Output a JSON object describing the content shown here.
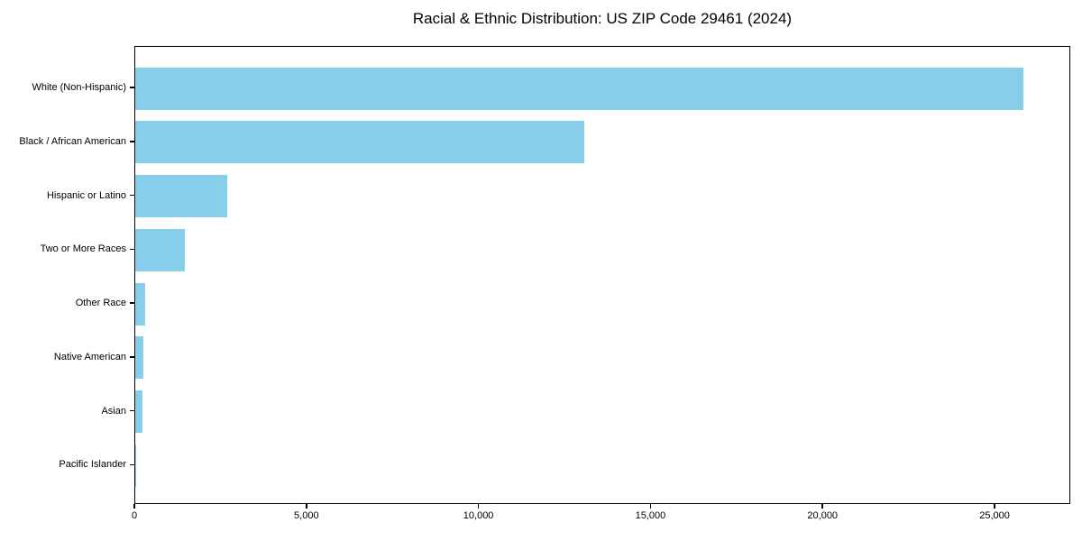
{
  "chart_data": {
    "type": "bar",
    "orientation": "horizontal",
    "title": "Racial & Ethnic Distribution: US ZIP Code 29461 (2024)",
    "xlabel": "",
    "ylabel": "",
    "categories": [
      "White (Non-Hispanic)",
      "Black / African American",
      "Hispanic or Latino",
      "Two or More Races",
      "Other Race",
      "Native American",
      "Asian",
      "Pacific Islander"
    ],
    "values": [
      25800,
      13050,
      2670,
      1440,
      290,
      245,
      220,
      20
    ],
    "xlim": [
      0,
      27200
    ],
    "x_ticks": [
      0,
      5000,
      10000,
      15000,
      20000,
      25000
    ],
    "x_tick_labels": [
      "0",
      "5,000",
      "10,000",
      "15,000",
      "20,000",
      "25,000"
    ],
    "grid": false,
    "legend": null,
    "bar_color": "#87CEEB",
    "axis_color": "#000000",
    "background_color": "#FFFFFF"
  }
}
